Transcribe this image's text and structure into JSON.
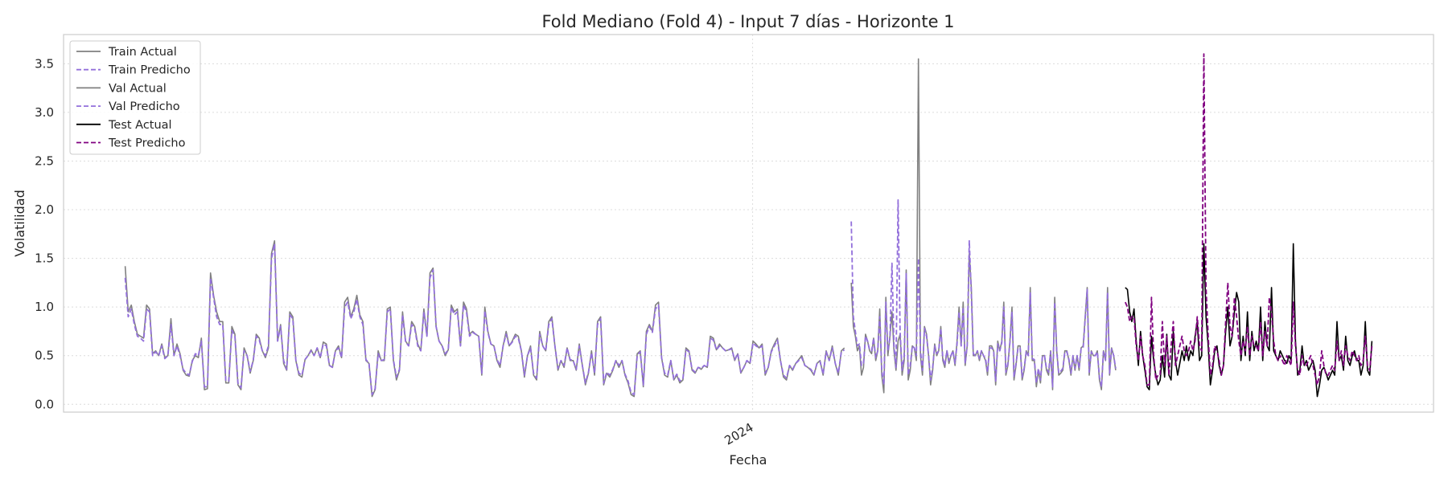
{
  "chart_data": {
    "type": "line",
    "title": "Fold Mediano (Fold 4) - Input 7 días - Horizonte 1",
    "xlabel": "Fecha",
    "ylabel": "Volatilidad",
    "x_tick_labels": [
      "2024"
    ],
    "x_tick_positions": [
      0.503
    ],
    "y_ticks": [
      0.0,
      0.5,
      1.0,
      1.5,
      2.0,
      2.5,
      3.0,
      3.5
    ],
    "ylim": [
      -0.08,
      3.8
    ],
    "grid": true,
    "legend_position": "top-left",
    "legend": [
      {
        "label": "Train Actual",
        "color": "#808080",
        "dash": "solid"
      },
      {
        "label": "Train Predicho",
        "color": "#9370db",
        "dash": "dashed"
      },
      {
        "label": "Val Actual",
        "color": "#808080",
        "dash": "solid"
      },
      {
        "label": "Val Predicho",
        "color": "#9370db",
        "dash": "dashed"
      },
      {
        "label": "Test Actual",
        "color": "#000000",
        "dash": "solid"
      },
      {
        "label": "Test Predicho",
        "color": "#800080",
        "dash": "dashed"
      }
    ],
    "series": [
      {
        "name": "Train Actual",
        "color": "#808080",
        "dash": "solid",
        "x_range": [
          0.045,
          0.57
        ],
        "values": [
          1.42,
          0.95,
          1.02,
          0.85,
          0.72,
          0.7,
          0.68,
          1.02,
          0.98,
          0.52,
          0.55,
          0.5,
          0.62,
          0.48,
          0.5,
          0.88,
          0.5,
          0.62,
          0.52,
          0.35,
          0.3,
          0.29,
          0.45,
          0.5,
          0.48,
          0.68,
          0.15,
          0.16,
          1.35,
          1.12,
          0.95,
          0.85,
          0.85,
          0.22,
          0.22,
          0.8,
          0.72,
          0.2,
          0.15,
          0.58,
          0.5,
          0.32,
          0.45,
          0.72,
          0.68,
          0.55,
          0.48,
          0.58,
          1.55,
          1.68,
          0.65,
          0.82,
          0.42,
          0.35,
          0.95,
          0.9,
          0.45,
          0.3,
          0.28,
          0.46,
          0.5,
          0.56,
          0.5,
          0.58,
          0.48,
          0.64,
          0.62,
          0.4,
          0.38,
          0.55,
          0.6,
          0.48,
          1.05,
          1.1,
          0.9,
          0.98,
          1.12,
          0.92,
          0.85,
          0.45,
          0.42,
          0.08,
          0.15,
          0.55,
          0.45,
          0.45,
          0.98,
          1.0,
          0.45,
          0.25,
          0.35,
          0.95,
          0.65,
          0.6,
          0.85,
          0.8,
          0.62,
          0.55,
          0.98,
          0.7,
          1.35,
          1.4,
          0.8,
          0.65,
          0.6,
          0.5,
          0.56,
          1.02,
          0.95,
          0.98,
          0.6,
          1.05,
          0.98,
          0.72,
          0.75,
          0.72,
          0.7,
          0.3,
          1.0,
          0.75,
          0.62,
          0.6,
          0.45,
          0.38,
          0.6,
          0.75,
          0.6,
          0.65,
          0.72,
          0.7,
          0.55,
          0.28,
          0.5,
          0.6,
          0.3,
          0.25,
          0.75,
          0.6,
          0.55,
          0.85,
          0.9,
          0.6,
          0.35,
          0.45,
          0.38,
          0.58,
          0.45,
          0.45,
          0.35,
          0.62,
          0.4,
          0.2,
          0.32,
          0.55,
          0.3,
          0.85,
          0.9,
          0.2,
          0.32,
          0.28,
          0.35,
          0.45,
          0.38,
          0.45,
          0.3,
          0.22,
          0.1,
          0.08,
          0.52,
          0.55,
          0.18,
          0.75,
          0.82,
          0.75,
          1.02,
          1.05,
          0.48,
          0.3,
          0.28,
          0.45,
          0.25,
          0.3,
          0.22,
          0.25,
          0.58,
          0.55,
          0.35,
          0.32,
          0.38,
          0.36,
          0.4,
          0.38,
          0.7,
          0.68,
          0.56,
          0.62,
          0.58,
          0.55,
          0.56,
          0.58,
          0.45,
          0.52,
          0.32,
          0.38,
          0.45,
          0.42,
          0.65,
          0.62,
          0.58,
          0.62,
          0.3,
          0.38,
          0.55,
          0.62,
          0.68,
          0.45,
          0.28,
          0.25,
          0.4,
          0.35,
          0.42,
          0.46,
          0.5,
          0.4,
          0.38,
          0.35,
          0.3,
          0.42,
          0.45,
          0.3,
          0.55,
          0.45,
          0.6,
          0.42,
          0.3,
          0.55,
          0.58
        ]
      },
      {
        "name": "Train Predicho",
        "color": "#9370db",
        "dash": "dashed",
        "x_range": [
          0.045,
          0.57
        ],
        "values": [
          1.3,
          0.9,
          0.98,
          0.82,
          0.7,
          0.68,
          0.65,
          0.98,
          0.95,
          0.5,
          0.54,
          0.5,
          0.6,
          0.47,
          0.5,
          0.82,
          0.5,
          0.6,
          0.5,
          0.36,
          0.32,
          0.3,
          0.44,
          0.52,
          0.5,
          0.65,
          0.18,
          0.18,
          1.3,
          1.1,
          0.9,
          0.82,
          0.82,
          0.24,
          0.24,
          0.76,
          0.7,
          0.22,
          0.17,
          0.55,
          0.5,
          0.34,
          0.45,
          0.7,
          0.66,
          0.55,
          0.5,
          0.6,
          1.5,
          1.65,
          0.65,
          0.8,
          0.45,
          0.36,
          0.92,
          0.88,
          0.45,
          0.32,
          0.3,
          0.46,
          0.5,
          0.55,
          0.5,
          0.58,
          0.48,
          0.62,
          0.6,
          0.4,
          0.38,
          0.55,
          0.58,
          0.48,
          1.0,
          1.05,
          0.88,
          0.95,
          1.08,
          0.9,
          0.82,
          0.46,
          0.42,
          0.1,
          0.16,
          0.52,
          0.45,
          0.46,
          0.95,
          0.98,
          0.46,
          0.28,
          0.36,
          0.92,
          0.64,
          0.6,
          0.82,
          0.78,
          0.6,
          0.55,
          0.95,
          0.7,
          1.3,
          1.38,
          0.8,
          0.65,
          0.6,
          0.52,
          0.56,
          1.0,
          0.92,
          0.95,
          0.6,
          1.02,
          0.95,
          0.7,
          0.74,
          0.72,
          0.7,
          0.32,
          0.96,
          0.74,
          0.62,
          0.6,
          0.46,
          0.4,
          0.6,
          0.72,
          0.6,
          0.64,
          0.7,
          0.68,
          0.55,
          0.3,
          0.5,
          0.58,
          0.32,
          0.27,
          0.72,
          0.6,
          0.55,
          0.82,
          0.88,
          0.6,
          0.37,
          0.45,
          0.4,
          0.58,
          0.46,
          0.45,
          0.36,
          0.6,
          0.4,
          0.22,
          0.33,
          0.53,
          0.32,
          0.82,
          0.88,
          0.22,
          0.33,
          0.3,
          0.36,
          0.45,
          0.4,
          0.45,
          0.31,
          0.24,
          0.12,
          0.1,
          0.5,
          0.54,
          0.2,
          0.72,
          0.8,
          0.74,
          0.98,
          1.02,
          0.48,
          0.32,
          0.3,
          0.45,
          0.26,
          0.31,
          0.24,
          0.26,
          0.56,
          0.54,
          0.36,
          0.33,
          0.38,
          0.37,
          0.4,
          0.38,
          0.68,
          0.66,
          0.56,
          0.6,
          0.58,
          0.55,
          0.56,
          0.57,
          0.46,
          0.52,
          0.33,
          0.38,
          0.45,
          0.42,
          0.63,
          0.6,
          0.58,
          0.6,
          0.32,
          0.38,
          0.54,
          0.6,
          0.66,
          0.45,
          0.3,
          0.27,
          0.4,
          0.36,
          0.42,
          0.45,
          0.48,
          0.4,
          0.38,
          0.36,
          0.31,
          0.42,
          0.44,
          0.31,
          0.54,
          0.45,
          0.58,
          0.42,
          0.32,
          0.54,
          0.56
        ]
      },
      {
        "name": "Val Actual",
        "color": "#808080",
        "dash": "solid",
        "x_range": [
          0.575,
          0.768
        ],
        "values": [
          1.25,
          0.8,
          0.7,
          0.55,
          0.6,
          0.3,
          0.38,
          0.72,
          0.65,
          0.55,
          0.52,
          0.68,
          0.45,
          0.55,
          0.98,
          0.3,
          0.12,
          1.1,
          0.5,
          0.7,
          0.95,
          0.55,
          0.35,
          0.65,
          0.72,
          0.3,
          0.45,
          1.38,
          0.25,
          0.35,
          0.6,
          0.58,
          0.45,
          3.55,
          0.5,
          0.3,
          0.8,
          0.72,
          0.5,
          0.2,
          0.35,
          0.62,
          0.5,
          0.55,
          0.8,
          0.45,
          0.38,
          0.55,
          0.42,
          0.5,
          0.55,
          0.4,
          0.65,
          1.0,
          0.6,
          1.05,
          0.4,
          0.6,
          1.55,
          1.2,
          0.5,
          0.5,
          0.55,
          0.45,
          0.55,
          0.5,
          0.45,
          0.3,
          0.6,
          0.6,
          0.55,
          0.2,
          0.65,
          0.55,
          0.65,
          1.05,
          0.3,
          0.4,
          0.65,
          1.0,
          0.25,
          0.4,
          0.6,
          0.6,
          0.25,
          0.35,
          0.55,
          0.5,
          1.2,
          0.45,
          0.45,
          0.18,
          0.35,
          0.22,
          0.5,
          0.5,
          0.35,
          0.3,
          0.55,
          0.15,
          1.1,
          0.55,
          0.3,
          0.32,
          0.35,
          0.55,
          0.55,
          0.45,
          0.3,
          0.5,
          0.35,
          0.5,
          0.35,
          0.58,
          0.6,
          0.9,
          1.2,
          0.3,
          0.55,
          0.5,
          0.5,
          0.55,
          0.25,
          0.15,
          0.55,
          0.45,
          1.2,
          0.3,
          0.58,
          0.5,
          0.35
        ]
      },
      {
        "name": "Val Predicho",
        "color": "#9370db",
        "dash": "dashed",
        "x_range": [
          0.575,
          0.768
        ],
        "values": [
          1.88,
          0.9,
          0.75,
          0.6,
          0.62,
          0.4,
          0.42,
          0.7,
          0.65,
          0.56,
          0.55,
          0.68,
          0.48,
          0.55,
          0.9,
          0.35,
          0.2,
          1.05,
          0.55,
          0.68,
          1.45,
          0.6,
          0.38,
          2.1,
          0.75,
          0.35,
          0.5,
          1.35,
          0.3,
          0.4,
          0.6,
          0.58,
          0.5,
          1.5,
          0.55,
          0.35,
          0.78,
          0.7,
          0.5,
          0.25,
          0.38,
          0.6,
          0.52,
          0.55,
          0.78,
          0.48,
          0.4,
          0.55,
          0.45,
          0.5,
          0.55,
          0.42,
          0.62,
          0.95,
          0.6,
          1.0,
          0.42,
          0.6,
          1.68,
          1.15,
          0.52,
          0.5,
          0.55,
          0.47,
          0.55,
          0.5,
          0.47,
          0.33,
          0.58,
          0.58,
          0.55,
          0.24,
          0.62,
          0.55,
          0.63,
          1.0,
          0.33,
          0.42,
          0.63,
          0.95,
          0.28,
          0.42,
          0.58,
          0.58,
          0.28,
          0.37,
          0.54,
          0.5,
          1.15,
          0.47,
          0.46,
          0.22,
          0.37,
          0.25,
          0.5,
          0.5,
          0.37,
          0.33,
          0.54,
          0.18,
          1.05,
          0.55,
          0.32,
          0.34,
          0.37,
          0.54,
          0.54,
          0.46,
          0.32,
          0.5,
          0.37,
          0.5,
          0.37,
          0.57,
          0.58,
          0.88,
          1.18,
          0.33,
          0.54,
          0.5,
          0.5,
          0.54,
          0.28,
          0.18,
          0.54,
          0.46,
          1.15,
          0.32,
          0.57,
          0.5,
          0.37
        ]
      },
      {
        "name": "Test Actual",
        "color": "#000000",
        "dash": "solid",
        "x_range": [
          0.775,
          0.955
        ],
        "values": [
          1.2,
          1.18,
          0.95,
          0.85,
          0.98,
          0.65,
          0.4,
          0.75,
          0.5,
          0.35,
          0.18,
          0.15,
          0.7,
          0.45,
          0.3,
          0.2,
          0.25,
          0.5,
          0.28,
          0.72,
          0.3,
          0.25,
          0.75,
          0.45,
          0.3,
          0.42,
          0.55,
          0.45,
          0.6,
          0.45,
          0.55,
          0.5,
          0.7,
          0.85,
          0.45,
          0.5,
          1.65,
          0.9,
          0.6,
          0.2,
          0.35,
          0.55,
          0.6,
          0.4,
          0.3,
          0.4,
          0.75,
          1.0,
          0.6,
          0.7,
          0.95,
          1.15,
          1.05,
          0.45,
          0.7,
          0.5,
          0.95,
          0.45,
          0.75,
          0.55,
          0.65,
          0.55,
          1.0,
          0.45,
          0.85,
          0.6,
          0.55,
          1.2,
          0.55,
          0.5,
          0.45,
          0.55,
          0.5,
          0.45,
          0.42,
          0.5,
          0.45,
          1.65,
          0.65,
          0.3,
          0.35,
          0.6,
          0.4,
          0.45,
          0.35,
          0.4,
          0.45,
          0.35,
          0.08,
          0.2,
          0.35,
          0.38,
          0.32,
          0.25,
          0.3,
          0.35,
          0.3,
          0.85,
          0.45,
          0.5,
          0.35,
          0.7,
          0.45,
          0.4,
          0.5,
          0.55,
          0.45,
          0.45,
          0.3,
          0.4,
          0.85,
          0.35,
          0.3,
          0.65
        ]
      },
      {
        "name": "Test Predicho",
        "color": "#800080",
        "dash": "dashed",
        "x_range": [
          0.775,
          0.955
        ],
        "values": [
          1.05,
          1.0,
          0.85,
          0.9,
          0.9,
          0.6,
          0.45,
          0.7,
          0.5,
          0.4,
          0.2,
          0.2,
          1.1,
          0.5,
          0.25,
          0.3,
          0.3,
          0.85,
          0.4,
          0.7,
          0.3,
          0.6,
          0.85,
          0.4,
          0.5,
          0.6,
          0.7,
          0.55,
          0.5,
          0.55,
          0.65,
          0.55,
          0.65,
          0.9,
          0.6,
          0.55,
          3.6,
          1.2,
          0.7,
          0.3,
          0.4,
          0.6,
          0.55,
          0.45,
          0.3,
          0.4,
          0.85,
          1.25,
          0.8,
          0.7,
          1.1,
          0.9,
          0.65,
          0.5,
          0.65,
          0.55,
          0.8,
          0.5,
          0.7,
          0.6,
          0.6,
          0.55,
          0.85,
          0.5,
          0.75,
          0.6,
          1.1,
          0.95,
          0.65,
          0.5,
          0.45,
          0.5,
          0.45,
          0.4,
          0.5,
          0.45,
          0.4,
          1.05,
          0.6,
          0.35,
          0.3,
          0.5,
          0.4,
          0.4,
          0.45,
          0.5,
          0.4,
          0.3,
          0.2,
          0.3,
          0.55,
          0.4,
          0.3,
          0.3,
          0.35,
          0.4,
          0.35,
          0.65,
          0.45,
          0.55,
          0.4,
          0.6,
          0.5,
          0.45,
          0.55,
          0.5,
          0.45,
          0.5,
          0.4,
          0.45,
          0.7,
          0.4,
          0.35,
          0.6
        ]
      }
    ]
  }
}
